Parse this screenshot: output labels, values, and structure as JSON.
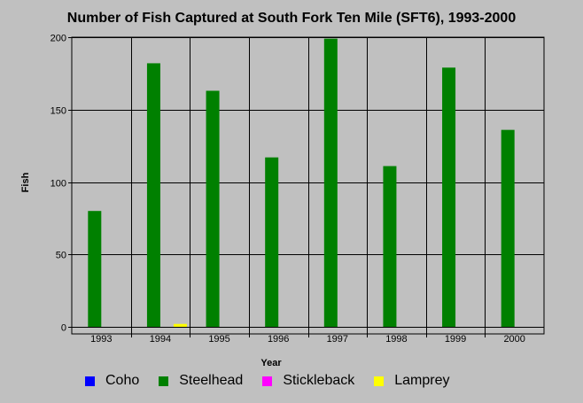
{
  "chart_data": {
    "type": "bar",
    "title": "Number of Fish Captured at South Fork Ten Mile (SFT6), 1993-2000",
    "xlabel": "Year",
    "ylabel": "Fish",
    "ylim": [
      0,
      200
    ],
    "yticks": [
      "0",
      "50",
      "100",
      "150",
      "200"
    ],
    "grid": true,
    "legend_position": "bottom",
    "categories": [
      "1993",
      "1994",
      "1995",
      "1996",
      "1997",
      "1998",
      "1999",
      "2000"
    ],
    "series": [
      {
        "name": "Coho",
        "color": "#0000ff",
        "values": [
          0,
          0,
          0,
          0,
          0,
          0,
          0,
          0
        ]
      },
      {
        "name": "Steelhead",
        "color": "#008000",
        "values": [
          80,
          182,
          163,
          117,
          199,
          111,
          179,
          136
        ]
      },
      {
        "name": "Stickleback",
        "color": "#ff00ff",
        "values": [
          0,
          0,
          0,
          0,
          0,
          0,
          0,
          0
        ]
      },
      {
        "name": "Lamprey",
        "color": "#ffff00",
        "values": [
          0,
          2,
          0,
          0,
          0,
          0,
          0,
          0
        ]
      }
    ]
  }
}
